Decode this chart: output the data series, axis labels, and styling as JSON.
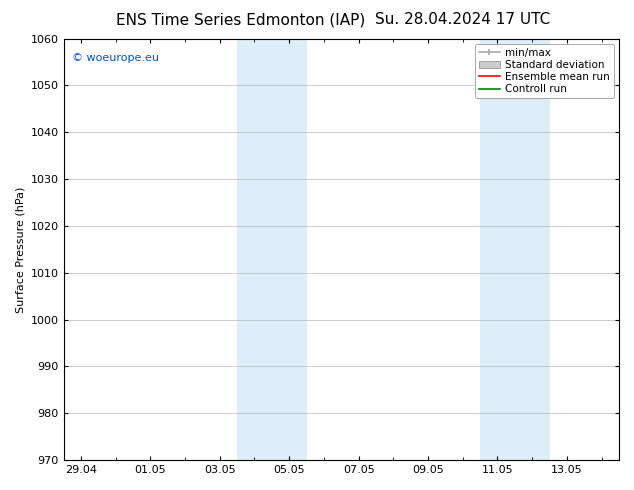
{
  "title_left": "ENS Time Series Edmonton (IAP)",
  "title_right": "Su. 28.04.2024 17 UTC",
  "ylabel": "Surface Pressure (hPa)",
  "ylim": [
    970,
    1060
  ],
  "yticks": [
    970,
    980,
    990,
    1000,
    1010,
    1020,
    1030,
    1040,
    1050,
    1060
  ],
  "xtick_positions": [
    0,
    2,
    4,
    6,
    8,
    10,
    12,
    14
  ],
  "xtick_labels": [
    "29.04",
    "01.05",
    "03.05",
    "05.05",
    "07.05",
    "09.05",
    "11.05",
    "13.05"
  ],
  "xlim": [
    -0.5,
    15.5
  ],
  "shaded_bands": [
    {
      "xstart": 4.5,
      "xend": 6.5
    },
    {
      "xstart": 11.5,
      "xend": 13.5
    }
  ],
  "shaded_color": "#ddeef8",
  "legend_items": [
    {
      "label": "min/max",
      "type": "errbar",
      "color": "#aaaaaa"
    },
    {
      "label": "Standard deviation",
      "type": "patch",
      "color": "#cccccc"
    },
    {
      "label": "Ensemble mean run",
      "type": "line",
      "color": "red"
    },
    {
      "label": "Controll run",
      "type": "line",
      "color": "green"
    }
  ],
  "watermark": "© woeurope.eu",
  "watermark_color": "#0055cc",
  "bg_color": "#ffffff",
  "grid_color": "#aaaaaa",
  "title_fontsize": 11,
  "axis_fontsize": 8,
  "tick_fontsize": 8,
  "legend_fontsize": 7.5
}
